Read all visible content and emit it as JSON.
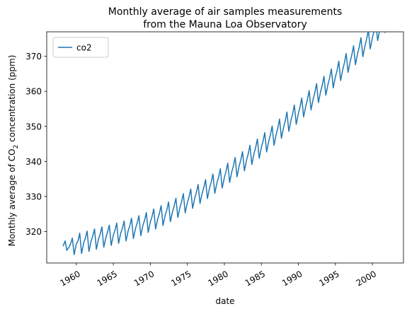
{
  "chart_data": {
    "type": "line",
    "title": [
      "Monthly average of air samples measurements",
      "from the Mauna Loa Observatory"
    ],
    "xlabel": "date",
    "ylabel": {
      "prefix": "Monthly average of CO",
      "subscript": "2",
      "suffix": " concentration (ppm)"
    },
    "x_range": [
      "1958-03",
      "2001-12"
    ],
    "ylim": [
      311.0,
      377.0
    ],
    "x_ticks": [
      "1960",
      "1965",
      "1970",
      "1975",
      "1980",
      "1985",
      "1990",
      "1995",
      "2000"
    ],
    "y_ticks": [
      "320",
      "330",
      "340",
      "350",
      "360",
      "370"
    ],
    "grid": false,
    "legend_position": "top-left",
    "series": [
      {
        "name": "co2",
        "color": "#1f77b4",
        "x_unit": "year",
        "values_unit": "ppm",
        "x": [
          1958.21,
          1958.5,
          1958.71,
          1959.0,
          1959.21,
          1959.46,
          1959.71,
          1960.0,
          1960.21,
          1960.46,
          1960.71,
          1961.0,
          1961.21,
          1961.46,
          1961.71,
          1962.0,
          1962.21,
          1962.46,
          1962.71,
          1963.0,
          1963.21,
          1963.46,
          1963.71,
          1964.0,
          1964.21,
          1964.46,
          1964.71,
          1965.0,
          1965.21,
          1965.46,
          1965.71,
          1966.0,
          1966.21,
          1966.46,
          1966.71,
          1967.0,
          1967.21,
          1967.46,
          1967.71,
          1968.0,
          1968.21,
          1968.46,
          1968.71,
          1969.0,
          1969.21,
          1969.46,
          1969.71,
          1970.0,
          1970.21,
          1970.46,
          1970.71,
          1971.0,
          1971.21,
          1971.46,
          1971.71,
          1972.0,
          1972.21,
          1972.46,
          1972.71,
          1973.0,
          1973.21,
          1973.46,
          1973.71,
          1974.0,
          1974.21,
          1974.46,
          1974.71,
          1975.0,
          1975.21,
          1975.46,
          1975.71,
          1976.0,
          1976.21,
          1976.46,
          1976.71,
          1977.0,
          1977.21,
          1977.46,
          1977.71,
          1978.0,
          1978.21,
          1978.46,
          1978.71,
          1979.0,
          1979.21,
          1979.46,
          1979.71,
          1980.0,
          1980.21,
          1980.46,
          1980.71,
          1981.0,
          1981.21,
          1981.46,
          1981.71,
          1982.0,
          1982.21,
          1982.46,
          1982.71,
          1983.0,
          1983.21,
          1983.46,
          1983.71,
          1984.0,
          1984.21,
          1984.46,
          1984.71,
          1985.0,
          1985.21,
          1985.46,
          1985.71,
          1986.0,
          1986.21,
          1986.46,
          1986.71,
          1987.0,
          1987.21,
          1987.46,
          1987.71,
          1988.0,
          1988.21,
          1988.46,
          1988.71,
          1989.0,
          1989.21,
          1989.46,
          1989.71,
          1990.0,
          1990.21,
          1990.46,
          1990.71,
          1991.0,
          1991.21,
          1991.46,
          1991.71,
          1992.0,
          1992.21,
          1992.46,
          1992.71,
          1993.0,
          1993.21,
          1993.46,
          1993.71,
          1994.0,
          1994.21,
          1994.46,
          1994.71,
          1995.0,
          1995.21,
          1995.46,
          1995.71,
          1996.0,
          1996.21,
          1996.46,
          1996.71,
          1997.0,
          1997.21,
          1997.46,
          1997.71,
          1998.0,
          1998.21,
          1998.46,
          1998.71,
          1999.0,
          1999.21,
          1999.46,
          1999.71,
          2000.0,
          2000.21,
          2000.46,
          2000.71,
          2001.0,
          2001.21,
          2001.46,
          2001.71,
          2001.96
        ],
        "values": [
          315.8,
          317.3,
          314.6,
          315.5,
          316.4,
          318.1,
          313.4,
          316.5,
          317.2,
          319.5,
          313.7,
          316.8,
          318.0,
          320.1,
          314.3,
          317.3,
          318.6,
          320.7,
          314.9,
          317.9,
          319.1,
          321.3,
          315.5,
          318.3,
          319.7,
          321.8,
          316.0,
          318.9,
          320.2,
          322.4,
          316.6,
          319.5,
          320.8,
          323.0,
          317.3,
          320.2,
          321.5,
          323.8,
          318.0,
          320.9,
          322.3,
          324.5,
          318.8,
          321.8,
          323.1,
          325.4,
          319.7,
          322.7,
          324.1,
          326.4,
          320.7,
          323.6,
          325.0,
          327.4,
          321.7,
          324.6,
          326.0,
          328.4,
          322.8,
          325.7,
          327.2,
          329.5,
          324.0,
          326.9,
          328.4,
          330.8,
          325.3,
          328.2,
          329.7,
          332.1,
          326.6,
          329.5,
          331.0,
          333.4,
          328.0,
          330.9,
          332.4,
          334.8,
          329.4,
          332.4,
          333.9,
          336.4,
          330.9,
          333.9,
          335.4,
          337.9,
          332.4,
          335.4,
          337.0,
          339.5,
          334.0,
          337.0,
          338.6,
          341.1,
          335.6,
          338.7,
          340.3,
          342.8,
          337.3,
          340.4,
          342.0,
          344.6,
          339.1,
          342.2,
          343.8,
          346.4,
          340.9,
          344.0,
          345.6,
          348.2,
          342.7,
          345.8,
          347.5,
          350.1,
          344.6,
          347.7,
          349.4,
          352.1,
          346.6,
          349.7,
          351.4,
          354.1,
          348.6,
          351.7,
          353.4,
          356.1,
          350.6,
          353.7,
          355.4,
          358.1,
          352.7,
          355.8,
          357.5,
          360.2,
          354.7,
          357.8,
          359.5,
          362.2,
          356.8,
          359.9,
          361.6,
          364.3,
          358.9,
          362.0,
          363.7,
          366.4,
          361.0,
          364.1,
          365.8,
          368.6,
          363.1,
          366.3,
          368.0,
          370.8,
          365.4,
          368.5,
          370.3,
          373.0,
          367.6,
          370.8,
          372.5,
          375.3,
          369.9,
          373.0,
          374.8,
          377.5,
          372.1,
          375.3,
          377.1,
          379.9,
          374.5,
          377.6,
          379.4,
          382.2,
          376.8,
          380.0
        ]
      }
    ]
  }
}
